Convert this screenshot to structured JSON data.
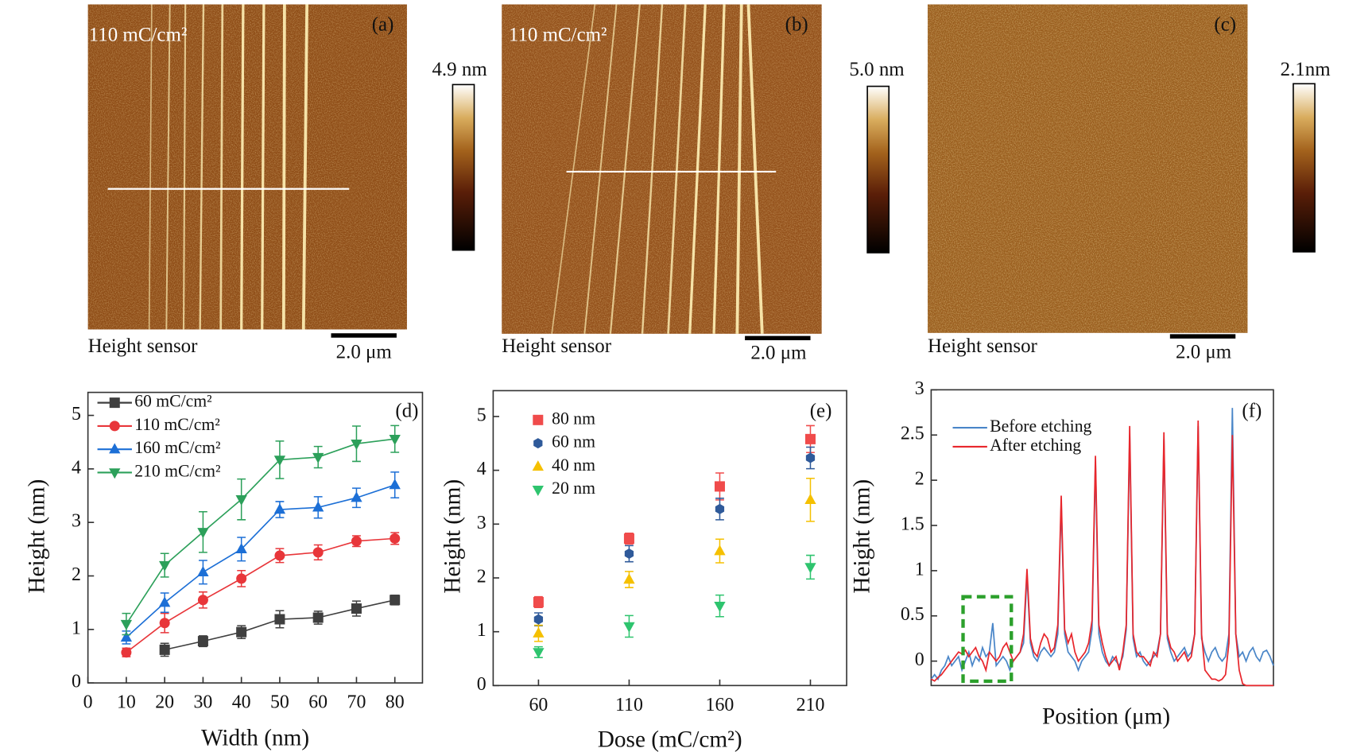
{
  "afm_panels": [
    {
      "label": "(a)",
      "dose": "110 mC/cm²",
      "colorbar_max": "4.9 nm",
      "sensor": "Height sensor",
      "scale": "2.0 μm"
    },
    {
      "label": "(b)",
      "dose": "110 mC/cm²",
      "colorbar_max": "5.0 nm",
      "sensor": "Height sensor",
      "scale": "2.0 μm"
    },
    {
      "label": "(c)",
      "colorbar_max": "2.1nm",
      "sensor": "Height sensor",
      "scale": "2.0 μm"
    }
  ],
  "chart_data": [
    {
      "type": "line",
      "panel_label": "(d)",
      "x_label": "Width (nm)",
      "y_label": "Height (nm)",
      "x": [
        10,
        20,
        30,
        40,
        50,
        60,
        70,
        80
      ],
      "xlim": [
        0,
        87.2
      ],
      "xticks": [
        0,
        10,
        20,
        30,
        40,
        50,
        60,
        70,
        80
      ],
      "ylim": [
        0,
        5.43
      ],
      "yticks": [
        0,
        1,
        2,
        3,
        4,
        5
      ],
      "legend": "upper left",
      "series": [
        {
          "name": "60 mC/cm²",
          "color": "#3f3f3f",
          "marker": "square",
          "values": [
            null,
            0.62,
            0.78,
            0.95,
            1.19,
            1.22,
            1.39,
            1.55
          ],
          "errors": [
            null,
            0.12,
            0.1,
            0.12,
            0.16,
            0.12,
            0.14,
            0.09
          ]
        },
        {
          "name": "110 mC/cm²",
          "color": "#e8363a",
          "marker": "circle",
          "values": [
            0.57,
            1.12,
            1.55,
            1.95,
            2.38,
            2.44,
            2.65,
            2.7
          ],
          "errors": [
            0.08,
            0.18,
            0.15,
            0.15,
            0.13,
            0.14,
            0.1,
            0.11
          ]
        },
        {
          "name": "160 mC/cm²",
          "color": "#1c6fd6",
          "marker": "triangle-up",
          "values": [
            0.85,
            1.5,
            2.07,
            2.5,
            3.24,
            3.28,
            3.46,
            3.7
          ],
          "errors": [
            0.12,
            0.18,
            0.22,
            0.22,
            0.15,
            0.2,
            0.18,
            0.24
          ]
        },
        {
          "name": "210 mC/cm²",
          "color": "#2ca05a",
          "marker": "triangle-down",
          "values": [
            1.1,
            2.2,
            2.82,
            3.43,
            4.17,
            4.22,
            4.47,
            4.56
          ],
          "errors": [
            0.2,
            0.22,
            0.38,
            0.38,
            0.35,
            0.2,
            0.33,
            0.25
          ]
        }
      ]
    },
    {
      "type": "scatter",
      "panel_label": "(e)",
      "x_label": "Dose (mC/cm²)",
      "y_label": "Height (nm)",
      "x": [
        60,
        110,
        160,
        210
      ],
      "xlim": [
        35,
        230
      ],
      "xticks": [
        60,
        110,
        160,
        210
      ],
      "ylim": [
        0,
        5.48
      ],
      "yticks": [
        0,
        1,
        2,
        3,
        4,
        5
      ],
      "legend": "upper left",
      "series": [
        {
          "name": "80 nm",
          "color": "#f04b4b",
          "marker": "square",
          "values": [
            1.55,
            2.73,
            3.7,
            4.58
          ],
          "errors": [
            0.1,
            0.1,
            0.25,
            0.25
          ]
        },
        {
          "name": "60 nm",
          "color": "#2f5a9a",
          "marker": "hexagon",
          "values": [
            1.23,
            2.45,
            3.28,
            4.23
          ],
          "errors": [
            0.12,
            0.15,
            0.2,
            0.2
          ]
        },
        {
          "name": "40 nm",
          "color": "#f5c000",
          "marker": "triangle-up",
          "values": [
            0.97,
            1.97,
            2.5,
            3.45
          ],
          "errors": [
            0.15,
            0.15,
            0.22,
            0.4
          ]
        },
        {
          "name": "20 nm",
          "color": "#2ec46e",
          "marker": "triangle-down",
          "values": [
            0.62,
            1.1,
            1.48,
            2.2
          ],
          "errors": [
            0.1,
            0.2,
            0.2,
            0.22
          ]
        }
      ]
    },
    {
      "type": "line",
      "panel_label": "(f)",
      "x_label": "Position (μm)",
      "y_label": "Height (nm)",
      "x": [
        0,
        1,
        2,
        3,
        4,
        5,
        6,
        7,
        8,
        9,
        10,
        11,
        12,
        13,
        14,
        15,
        16,
        17,
        18,
        19,
        20,
        21,
        22,
        23,
        24,
        25,
        26,
        27,
        28,
        29,
        30,
        31,
        32,
        33,
        34,
        35,
        36,
        37,
        38,
        39,
        40,
        41,
        42,
        43,
        44,
        45,
        46,
        47,
        48,
        49,
        50,
        51,
        52,
        53,
        54,
        55,
        56,
        57,
        58,
        59,
        60,
        61,
        62,
        63,
        64,
        65,
        66,
        67,
        68,
        69,
        70,
        71,
        72,
        73,
        74,
        75,
        76,
        77,
        78,
        79,
        80,
        81,
        82,
        83,
        84,
        85,
        86,
        87,
        88,
        89,
        90,
        91,
        92,
        93,
        94,
        95,
        96,
        97,
        98,
        99,
        100
      ],
      "xlim": [
        0,
        100
      ],
      "ylim": [
        -0.27,
        3
      ],
      "yticks": [
        0,
        0.5,
        1,
        1.5,
        2,
        2.5,
        3
      ],
      "legend": "upper left",
      "series": [
        {
          "name": "Before etching",
          "color": "#4a86c8",
          "values": [
            -0.2,
            -0.15,
            -0.2,
            -0.1,
            -0.05,
            0.05,
            -0.05,
            0.0,
            0.05,
            -0.1,
            0.0,
            0.1,
            -0.05,
            0.05,
            0.0,
            0.15,
            0.05,
            0.1,
            0.42,
            -0.05,
            0.0,
            0.05,
            0.0,
            -0.1,
            0.0,
            0.05,
            0.1,
            0.2,
            0.95,
            0.2,
            0.05,
            0.0,
            0.1,
            0.15,
            0.1,
            0.05,
            0.1,
            0.3,
            1.75,
            0.3,
            0.1,
            0.05,
            0.0,
            -0.1,
            0.0,
            0.05,
            0.1,
            0.35,
            2.2,
            0.3,
            0.1,
            0.0,
            -0.05,
            0.05,
            0.0,
            -0.05,
            0.05,
            0.35,
            2.5,
            0.25,
            0.05,
            0.1,
            0.0,
            -0.05,
            0.0,
            0.05,
            0.1,
            0.3,
            2.45,
            0.25,
            0.1,
            0.0,
            0.05,
            0.1,
            0.15,
            0.05,
            0.1,
            0.3,
            2.6,
            0.25,
            0.1,
            0.0,
            0.1,
            0.15,
            0.05,
            0.0,
            0.05,
            0.3,
            2.8,
            0.3,
            0.05,
            0.1,
            0.0,
            0.1,
            0.15,
            0.05,
            0.0,
            0.1,
            0.12,
            0.05,
            -0.05
          ]
        },
        {
          "name": "After etching",
          "color": "#e8262c",
          "values": [
            -0.2,
            -0.22,
            -0.18,
            -0.15,
            -0.1,
            -0.05,
            0.0,
            0.05,
            0.1,
            0.08,
            0.12,
            0.05,
            0.1,
            0.15,
            0.05,
            0.0,
            -0.1,
            0.1,
            0.05,
            0.0,
            0.05,
            0.15,
            0.2,
            0.1,
            0.0,
            0.05,
            0.1,
            0.3,
            1.02,
            0.25,
            0.1,
            0.05,
            0.2,
            0.3,
            0.25,
            0.1,
            0.15,
            0.4,
            1.83,
            0.35,
            0.2,
            0.3,
            0.1,
            0.0,
            0.05,
            0.1,
            0.2,
            0.45,
            2.27,
            0.4,
            0.2,
            0.05,
            -0.05,
            0.0,
            0.05,
            -0.1,
            0.1,
            0.4,
            2.6,
            0.3,
            0.1,
            0.05,
            0.05,
            0.0,
            -0.05,
            0.1,
            0.05,
            0.3,
            2.53,
            0.3,
            0.15,
            0.1,
            0.0,
            0.05,
            0.1,
            0.0,
            0.05,
            0.3,
            2.66,
            0.3,
            -0.1,
            -0.15,
            -0.2,
            -0.2,
            -0.22,
            -0.2,
            -0.15,
            0.2,
            2.5,
            0.3,
            -0.1,
            -0.25,
            -0.27,
            -0.27,
            -0.27,
            -0.27,
            -0.27,
            -0.27,
            -0.27,
            -0.27,
            -0.27
          ]
        }
      ]
    }
  ]
}
